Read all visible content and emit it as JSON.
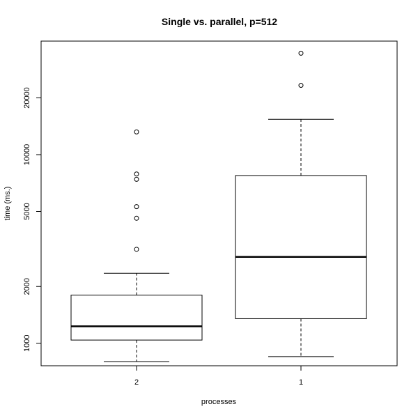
{
  "chart_data": {
    "type": "box",
    "title": "Single vs. parallel, p=512",
    "xlabel": "processes",
    "ylabel": "time (ms.)",
    "y_scale": "log",
    "ylim": [
      760,
      40000
    ],
    "y_ticks": [
      1000,
      2000,
      5000,
      10000,
      20000
    ],
    "y_tick_labels": [
      "1000",
      "2000",
      "5000",
      "10000",
      "20000"
    ],
    "categories": [
      "2",
      "1"
    ],
    "boxes": [
      {
        "category": "2",
        "whisker_low": 800,
        "q1": 1040,
        "median": 1230,
        "q3": 1800,
        "whisker_high": 2350,
        "outliers": [
          3150,
          4600,
          5300,
          7400,
          7900,
          13200
        ]
      },
      {
        "category": "1",
        "whisker_low": 850,
        "q1": 1350,
        "median": 2870,
        "q3": 7750,
        "whisker_high": 15400,
        "outliers": [
          23300,
          34500
        ]
      }
    ],
    "grid": false,
    "legend": "none"
  }
}
